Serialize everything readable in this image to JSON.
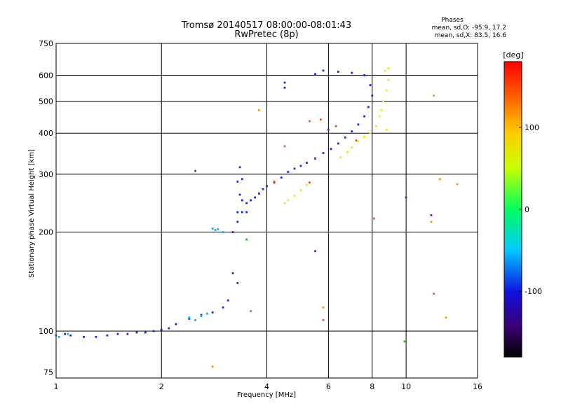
{
  "chart_data": {
    "type": "scatter",
    "title": "Tromsø 20140517 08:00:00-08:01:43",
    "subtitle": "RwPretec (8p)",
    "stats_header": "Phases",
    "stats_line1": "mean, sd,O: -95.9, 17.2",
    "stats_line2": "mean, sd,X:  83.5, 16.6",
    "xlabel": "Frequency [MHz]",
    "ylabel": "Stationary phase Virtual Height [km]",
    "x_scale": "log",
    "y_scale": "log",
    "xlim": [
      1,
      16
    ],
    "ylim": [
      72,
      750
    ],
    "x_ticks": [
      1,
      2,
      4,
      6,
      8,
      10,
      16
    ],
    "x_tick_labels": [
      "1",
      "2",
      "4",
      "6",
      "8",
      "10",
      "16"
    ],
    "y_ticks": [
      75,
      100,
      200,
      300,
      400,
      500,
      600,
      750
    ],
    "y_tick_labels": [
      "75",
      "100",
      "200",
      "300",
      "400",
      "500",
      "600",
      "750"
    ],
    "grid": true,
    "colorbar": {
      "label": "[deg]",
      "range": [
        -180,
        180
      ],
      "ticks": [
        100,
        0,
        -100
      ],
      "tick_labels": [
        "100",
        "0",
        "-100"
      ]
    },
    "series": [
      {
        "color": "#1a2adc",
        "points": [
          [
            1.06,
            98
          ],
          [
            1.1,
            97
          ],
          [
            1.2,
            96
          ],
          [
            1.3,
            96
          ],
          [
            1.4,
            97
          ],
          [
            1.5,
            98
          ],
          [
            1.6,
            98
          ],
          [
            1.7,
            99
          ],
          [
            1.8,
            99
          ],
          [
            1.9,
            100
          ],
          [
            2.0,
            101
          ],
          [
            2.1,
            102
          ],
          [
            2.2,
            105
          ],
          [
            2.4,
            109
          ],
          [
            2.6,
            112
          ],
          [
            2.8,
            114
          ],
          [
            3.0,
            118
          ],
          [
            3.1,
            124
          ],
          [
            3.2,
            150
          ],
          [
            3.3,
            140
          ],
          [
            3.2,
            200
          ],
          [
            3.3,
            215
          ],
          [
            3.4,
            230
          ],
          [
            3.5,
            245
          ],
          [
            3.6,
            250
          ],
          [
            3.7,
            255
          ],
          [
            3.8,
            262
          ],
          [
            3.9,
            270
          ],
          [
            4.0,
            276
          ],
          [
            4.2,
            283
          ],
          [
            4.4,
            293
          ],
          [
            4.6,
            305
          ],
          [
            4.8,
            312
          ],
          [
            5.0,
            318
          ],
          [
            5.2,
            325
          ],
          [
            5.5,
            335
          ],
          [
            5.8,
            348
          ],
          [
            6.1,
            358
          ],
          [
            6.4,
            372
          ],
          [
            6.7,
            388
          ],
          [
            7.0,
            405
          ],
          [
            7.3,
            425
          ],
          [
            7.6,
            450
          ],
          [
            7.8,
            480
          ],
          [
            8.0,
            520
          ],
          [
            7.9,
            560
          ],
          [
            7.6,
            600
          ],
          [
            5.8,
            620
          ],
          [
            6.4,
            615
          ],
          [
            7.0,
            610
          ],
          [
            5.5,
            605
          ],
          [
            4.5,
            570
          ],
          [
            4.5,
            550
          ],
          [
            3.3,
            230
          ],
          [
            3.35,
            260
          ],
          [
            3.4,
            290
          ],
          [
            3.35,
            315
          ],
          [
            3.3,
            285
          ],
          [
            3.4,
            250
          ],
          [
            3.5,
            230
          ]
        ]
      },
      {
        "color": "#1eaee6",
        "points": [
          [
            1.0,
            97
          ],
          [
            1.02,
            96
          ],
          [
            1.08,
            98
          ],
          [
            2.4,
            110
          ],
          [
            2.5,
            108
          ],
          [
            2.6,
            111
          ],
          [
            2.7,
            113
          ],
          [
            2.8,
            205
          ],
          [
            2.85,
            203
          ],
          [
            2.9,
            204
          ],
          [
            3.0,
            200
          ]
        ]
      },
      {
        "color": "#e6ee2a",
        "points": [
          [
            4.5,
            245
          ],
          [
            4.6,
            250
          ],
          [
            4.8,
            258
          ],
          [
            5.0,
            268
          ],
          [
            5.2,
            278
          ],
          [
            6.5,
            338
          ],
          [
            6.8,
            350
          ],
          [
            7.0,
            362
          ],
          [
            7.3,
            378
          ],
          [
            7.6,
            390
          ],
          [
            7.9,
            400
          ],
          [
            8.2,
            420
          ],
          [
            8.4,
            450
          ],
          [
            8.6,
            500
          ],
          [
            8.8,
            540
          ],
          [
            8.9,
            580
          ],
          [
            8.7,
            620
          ],
          [
            8.9,
            630
          ],
          [
            8.5,
            470
          ],
          [
            8.8,
            410
          ]
        ]
      },
      {
        "color": "#f05010",
        "points": [
          [
            5.7,
            440
          ],
          [
            6.3,
            420
          ],
          [
            7.2,
            380
          ],
          [
            4.2,
            285
          ],
          [
            5.3,
            283
          ]
        ]
      },
      {
        "color": "#e8a020",
        "points": [
          [
            2.8,
            78
          ],
          [
            3.8,
            470
          ],
          [
            5.8,
            118
          ],
          [
            12.0,
            520
          ],
          [
            12.5,
            290
          ],
          [
            13.0,
            110
          ],
          [
            11.8,
            215
          ],
          [
            14.0,
            280
          ]
        ]
      },
      {
        "color": "#6a20a0",
        "points": [
          [
            2.5,
            307
          ],
          [
            5.5,
            175
          ],
          [
            10.0,
            255
          ],
          [
            6.0,
            410
          ],
          [
            11.8,
            225
          ]
        ]
      },
      {
        "color": "#20c020",
        "points": [
          [
            9.9,
            93
          ],
          [
            3.5,
            190
          ]
        ]
      },
      {
        "color": "#c07060",
        "points": [
          [
            5.8,
            108
          ],
          [
            3.6,
            115
          ],
          [
            4.5,
            365
          ],
          [
            5.3,
            435
          ],
          [
            8.1,
            220
          ],
          [
            12.0,
            130
          ]
        ]
      }
    ]
  }
}
